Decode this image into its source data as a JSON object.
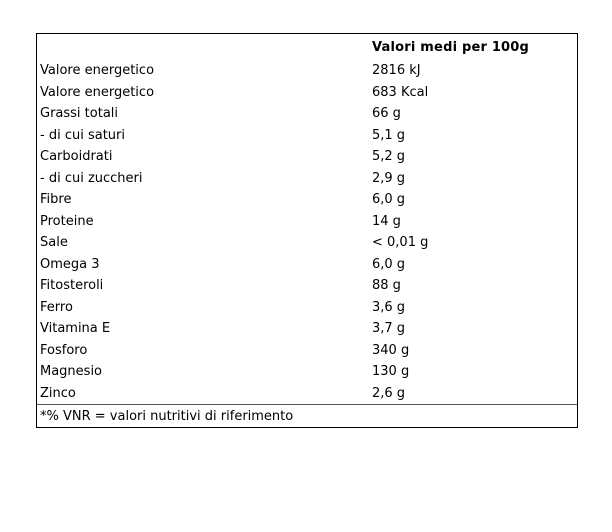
{
  "table": {
    "header": {
      "value_column_title": "Valori medi per 100g"
    },
    "rows": [
      {
        "label": "Valore energetico",
        "value": "2816 kJ"
      },
      {
        "label": "Valore energetico",
        "value": "683 Kcal"
      },
      {
        "label": "Grassi totali",
        "value": "66 g"
      },
      {
        "label": "- di cui saturi",
        "value": "5,1 g"
      },
      {
        "label": "Carboidrati",
        "value": "5,2 g"
      },
      {
        "label": "- di cui zuccheri",
        "value": "2,9 g"
      },
      {
        "label": "Fibre",
        "value": "6,0 g"
      },
      {
        "label": "Proteine",
        "value": "14 g"
      },
      {
        "label": "Sale",
        "value": "< 0,01 g"
      },
      {
        "label": "Omega 3",
        "value": "6,0 g"
      },
      {
        "label": "Fitosteroli",
        "value": "88 g"
      },
      {
        "label": "Ferro",
        "value": "3,6 g"
      },
      {
        "label": "Vitamina E",
        "value": "3,7 g"
      },
      {
        "label": "Fosforo",
        "value": "340 g"
      },
      {
        "label": "Magnesio",
        "value": "130 g"
      },
      {
        "label": "Zinco",
        "value": "2,6 g"
      }
    ],
    "footer_note": "*% VNR = valori nutritivi di riferimento",
    "colors": {
      "border": "#000000",
      "separator": "#555555",
      "text": "#000000",
      "background": "#ffffff"
    }
  }
}
